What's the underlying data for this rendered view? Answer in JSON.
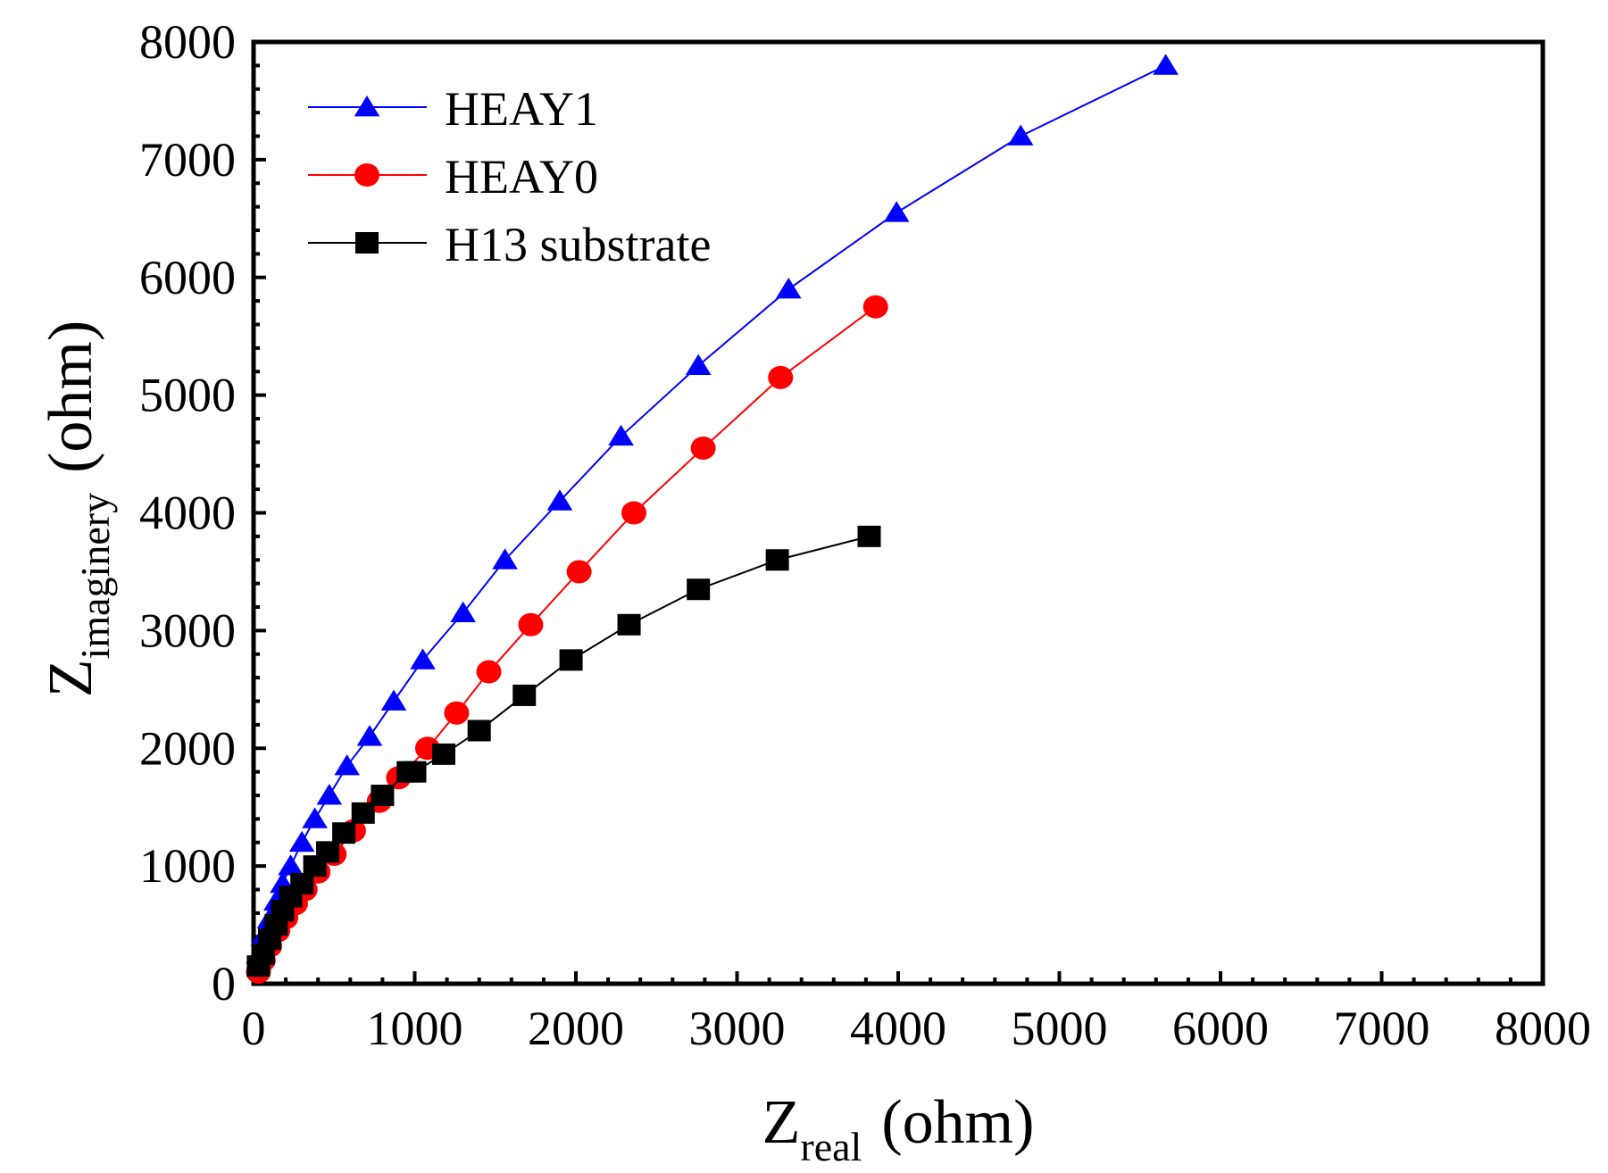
{
  "chart_data": {
    "type": "scatter",
    "title": "",
    "xlabel": {
      "main": "Z",
      "sub": "real",
      "unit": "(ohm)"
    },
    "ylabel": {
      "main": "Z",
      "sub": "imaginery",
      "unit": "(ohm)"
    },
    "xlim": [
      0,
      8000
    ],
    "ylim": [
      0,
      8000
    ],
    "x_ticks": [
      0,
      1000,
      2000,
      3000,
      4000,
      5000,
      6000,
      7000,
      8000
    ],
    "y_ticks": [
      0,
      1000,
      2000,
      3000,
      4000,
      5000,
      6000,
      7000,
      8000
    ],
    "x_tick_labels": [
      "0",
      "1000",
      "2000",
      "3000",
      "4000",
      "5000",
      "6000",
      "7000",
      "8000"
    ],
    "y_tick_labels": [
      "0",
      "1000",
      "2000",
      "3000",
      "4000",
      "5000",
      "6000",
      "7000",
      "8000"
    ],
    "grid": false,
    "legend_position": "top-left",
    "series": [
      {
        "name": "HEAY1",
        "color": "#0000ff",
        "marker": "triangle",
        "x": [
          30,
          60,
          100,
          140,
          180,
          230,
          300,
          380,
          470,
          580,
          720,
          870,
          1050,
          1300,
          1560,
          1900,
          2280,
          2760,
          3320,
          3990,
          4760,
          5660
        ],
        "y": [
          250,
          400,
          550,
          700,
          850,
          1000,
          1200,
          1400,
          1600,
          1850,
          2100,
          2400,
          2750,
          3150,
          3600,
          4100,
          4650,
          5250,
          5900,
          6550,
          7200,
          7800
        ]
      },
      {
        "name": "HEAY0",
        "color": "#ff0000",
        "marker": "circle",
        "x": [
          30,
          60,
          100,
          150,
          200,
          260,
          320,
          400,
          500,
          620,
          780,
          900,
          1080,
          1260,
          1460,
          1720,
          2020,
          2360,
          2790,
          3270,
          3860
        ],
        "y": [
          100,
          200,
          320,
          450,
          560,
          680,
          800,
          950,
          1100,
          1300,
          1550,
          1750,
          2000,
          2300,
          2650,
          3050,
          3500,
          4000,
          4550,
          5150,
          5750
        ]
      },
      {
        "name": "H13 substrate",
        "color": "#000000",
        "marker": "square",
        "x": [
          30,
          60,
          100,
          140,
          180,
          230,
          300,
          380,
          460,
          560,
          680,
          800,
          960,
          1000,
          1180,
          1400,
          1680,
          1970,
          2330,
          2760,
          3250,
          3820
        ],
        "y": [
          150,
          250,
          380,
          500,
          620,
          740,
          850,
          1000,
          1120,
          1280,
          1450,
          1600,
          1800,
          1800,
          1950,
          2150,
          2450,
          2750,
          3050,
          3350,
          3600,
          3800
        ]
      }
    ]
  }
}
